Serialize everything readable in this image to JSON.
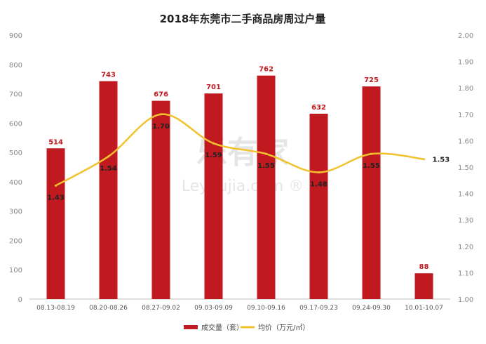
{
  "chart_data": {
    "type": "bar",
    "title": "2018年东莞市二手商品房周过户量",
    "categories": [
      "08.13-08.19",
      "08.20-08.26",
      "08.27-09.02",
      "09.03-09.09",
      "09.10-09.16",
      "09.17-09.23",
      "09.24-09.30",
      "10.01-10.07"
    ],
    "series": [
      {
        "name": "成交量（套）",
        "type": "bar",
        "axis": "left",
        "color": "#c0191f",
        "values": [
          514,
          743,
          676,
          701,
          762,
          632,
          725,
          88
        ]
      },
      {
        "name": "均价（万元/㎡）",
        "type": "line",
        "axis": "right",
        "color": "#f2c12e",
        "values": [
          1.43,
          1.54,
          1.7,
          1.59,
          1.55,
          1.48,
          1.55,
          1.53
        ]
      }
    ],
    "y_left": {
      "min": 0,
      "max": 900,
      "ticks": [
        "0",
        "100",
        "200",
        "300",
        "400",
        "500",
        "600",
        "700",
        "800",
        "900"
      ]
    },
    "y_right": {
      "min": 1.0,
      "max": 2.0,
      "ticks": [
        "1.00",
        "1.10",
        "1.20",
        "1.30",
        "1.40",
        "1.50",
        "1.60",
        "1.70",
        "1.80",
        "1.90",
        "2.00"
      ]
    },
    "bar_labels": [
      "514",
      "743",
      "676",
      "701",
      "762",
      "632",
      "725",
      "88"
    ],
    "line_labels": [
      "1.43",
      "1.54",
      "1.70",
      "1.59",
      "1.55",
      "1.48",
      "1.55",
      "1.53"
    ],
    "grid": false,
    "legend_position": "bottom",
    "watermark": "乐有家 Leyoujia.com"
  },
  "colors": {
    "bar": "#c0191f",
    "line": "#f2c12e",
    "text": "#333333",
    "axis": "#8a8a8a",
    "label_bar": "#c0191f",
    "label_line": "#222222"
  }
}
